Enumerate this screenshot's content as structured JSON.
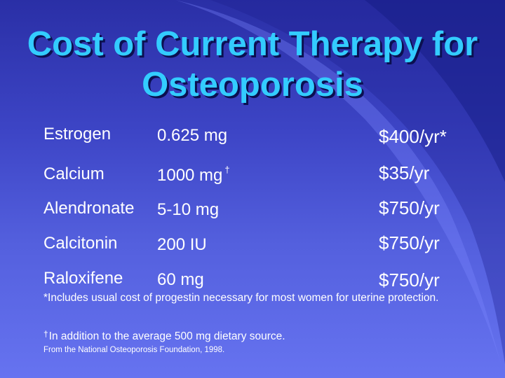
{
  "slide": {
    "title_line1": "Cost of Current Therapy for",
    "title_line2": "Osteoporosis"
  },
  "therapies": [
    {
      "drug": "Estrogen",
      "dose": "0.625 mg",
      "dose_mark": "",
      "cost": "$400/yr*"
    },
    {
      "drug": "Calcium",
      "dose": "1000 mg",
      "dose_mark": "†",
      "cost": "$35/yr"
    },
    {
      "drug": "Alendronate",
      "dose": "5-10 mg",
      "dose_mark": "",
      "cost": "$750/yr"
    },
    {
      "drug": "Calcitonin",
      "dose": "200 IU",
      "dose_mark": "",
      "cost": "$750/yr"
    },
    {
      "drug": "Raloxifene",
      "dose": "60 mg",
      "dose_mark": "",
      "cost": "$750/yr"
    }
  ],
  "notes": {
    "asterisk_note": "*Includes usual cost of progestin necessary for most women for uterine protection.",
    "dagger_mark": "†",
    "dagger_note": "In addition to the average 500 mg dietary source.",
    "source": "From the National Osteoporosis Foundation, 1998."
  }
}
